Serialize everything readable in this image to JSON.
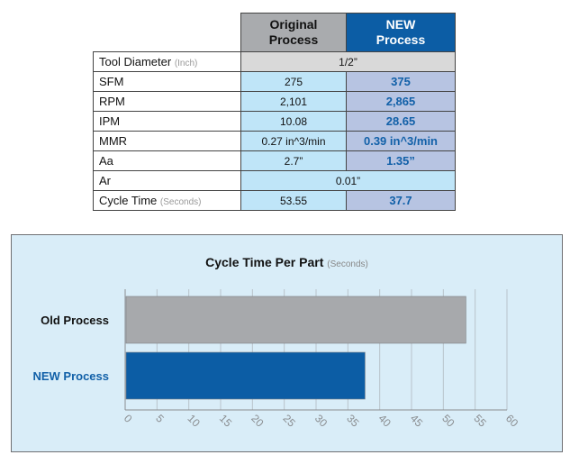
{
  "table": {
    "headers": {
      "original": "Original\nProcess",
      "new": "NEW\nProcess"
    },
    "rows": [
      {
        "label": "Tool Diameter",
        "unit": "(Inch)",
        "span": "1/2”",
        "span_style": "gray"
      },
      {
        "label": "SFM",
        "original": "275",
        "new": "375"
      },
      {
        "label": "RPM",
        "original": "2,101",
        "new": "2,865"
      },
      {
        "label": "IPM",
        "original": "10.08",
        "new": "28.65"
      },
      {
        "label": "MMR",
        "original": "0.27 in^3/min",
        "new": "0.39 in^3/min"
      },
      {
        "label": "Aa",
        "original": "2.7”",
        "new": "1.35”"
      },
      {
        "label": "Ar",
        "span": "0.01”",
        "span_style": "blue"
      },
      {
        "label": "Cycle Time",
        "unit": "(Seconds)",
        "original": "53.55",
        "new": "37.7"
      }
    ]
  },
  "chart_data": {
    "type": "bar",
    "orientation": "horizontal",
    "title": "Cycle Time Per Part",
    "subtitle": "(Seconds)",
    "categories": [
      "Old Process",
      "NEW Process"
    ],
    "values": [
      53.55,
      37.7
    ],
    "xlim": [
      0,
      60
    ],
    "xticks": [
      "0",
      "5",
      "10",
      "15",
      "20",
      "25",
      "30",
      "35",
      "40",
      "45",
      "50",
      "55",
      "60"
    ],
    "grid": true,
    "colors": {
      "old": "#a7a9ac",
      "new": "#0c5da5",
      "new_label": "#1160a8"
    }
  }
}
